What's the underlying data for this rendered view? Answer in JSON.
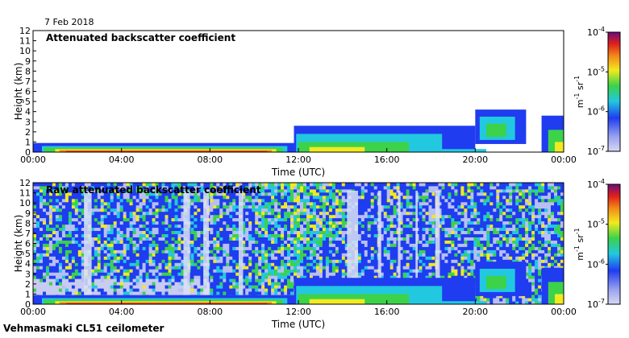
{
  "header": {
    "date": "7 Feb 2018"
  },
  "footer": {
    "instrument": "Vehmasmaki CL51 ceilometer"
  },
  "colors": {
    "white": "#ffffff",
    "blue": "#1f3cf0",
    "cyan": "#22c8e0",
    "green": "#3cd24a",
    "yellow": "#f2ea20",
    "orange": "#f28a18",
    "red": "#e0201c",
    "darkred": "#8a1818",
    "purple": "#6c0c7a",
    "lavender": "#d6d8f4"
  },
  "chart_data": [
    {
      "type": "heatmap",
      "name": "attenuated",
      "title": "Attenuated backscatter coefficient",
      "xlabel": "Time (UTC)",
      "ylabel": "Height (km)",
      "x_ticks": [
        "00:00",
        "04:00",
        "08:00",
        "12:00",
        "16:00",
        "20:00",
        "00:00"
      ],
      "x_range_hours": [
        0,
        24
      ],
      "y_ticks": [
        "0",
        "1",
        "2",
        "3",
        "4",
        "5",
        "6",
        "7",
        "8",
        "9",
        "10",
        "11",
        "12"
      ],
      "ylim": [
        0,
        12
      ],
      "colorbar": {
        "scale": "log",
        "range": [
          1e-07,
          0.0001
        ],
        "tick_labels": [
          "10^-7",
          "10^-6",
          "10^-5",
          "10^-4"
        ],
        "label": "m-1 sr-1"
      }
    },
    {
      "type": "heatmap",
      "name": "raw",
      "title": "Raw attenuated backscatter coefficient",
      "xlabel": "Time (UTC)",
      "ylabel": "Height (km)",
      "x_ticks": [
        "00:00",
        "04:00",
        "08:00",
        "12:00",
        "16:00",
        "20:00",
        "00:00"
      ],
      "x_range_hours": [
        0,
        24
      ],
      "y_ticks": [
        "0",
        "1",
        "2",
        "3",
        "4",
        "5",
        "6",
        "7",
        "8",
        "9",
        "10",
        "11",
        "12"
      ],
      "ylim": [
        0,
        12
      ],
      "colorbar": {
        "scale": "log",
        "range": [
          1e-07,
          0.0001
        ],
        "tick_labels": [
          "10^-7",
          "10^-6",
          "10^-5",
          "10^-4"
        ],
        "label": "m-1 sr-1"
      }
    }
  ]
}
